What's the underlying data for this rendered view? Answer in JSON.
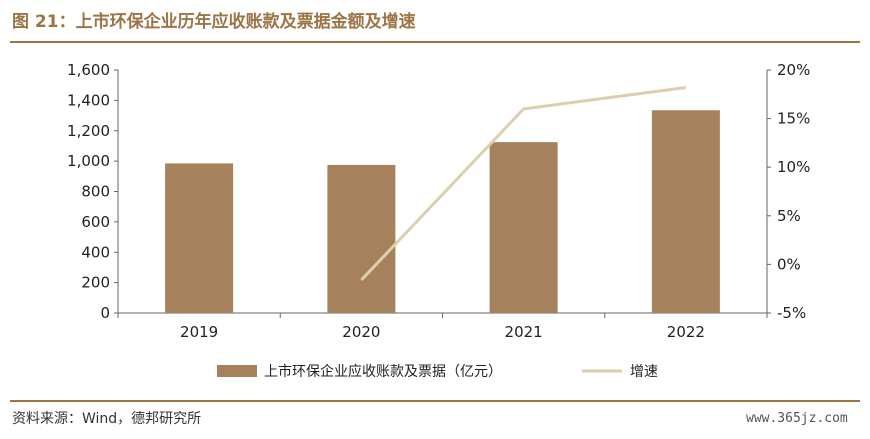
{
  "header": {
    "title": "图 21：上市环保企业历年应收账款及票据金额及增速"
  },
  "chart_data": {
    "type": "bar+line",
    "categories": [
      "2019",
      "2020",
      "2021",
      "2022"
    ],
    "series": [
      {
        "name": "上市环保企业应收账款及票据（亿元）",
        "type": "bar",
        "axis": "left",
        "values": [
          985,
          975,
          1125,
          1335
        ],
        "color": "#a5825b"
      },
      {
        "name": "增速",
        "type": "line",
        "axis": "right",
        "values": [
          null,
          -1.6,
          16.0,
          18.2
        ],
        "color": "#ddcfae"
      }
    ],
    "y_left": {
      "range": [
        0,
        1600
      ],
      "ticks": [
        0,
        200,
        400,
        600,
        800,
        1000,
        1200,
        1400,
        1600
      ],
      "tick_labels": [
        "0",
        "200",
        "400",
        "600",
        "800",
        "1,000",
        "1,200",
        "1,400",
        "1,600"
      ]
    },
    "y_right": {
      "range": [
        -5,
        20
      ],
      "ticks": [
        -5,
        0,
        5,
        10,
        15,
        20
      ],
      "tick_labels": [
        "-5%",
        "0%",
        "5%",
        "10%",
        "15%",
        "20%"
      ]
    },
    "grid": false,
    "legend": "bottom"
  },
  "footer": {
    "source": "资料来源：Wind，德邦研究所",
    "watermark": "www.365jz.com"
  }
}
